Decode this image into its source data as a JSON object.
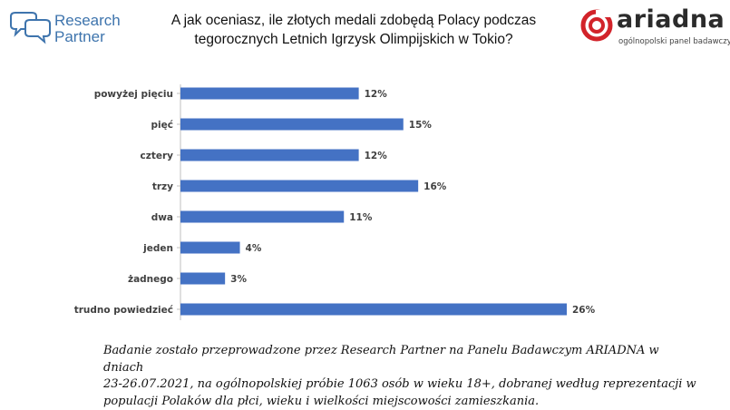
{
  "header": {
    "brand_left": [
      "Research",
      "Partner"
    ],
    "title_lines": [
      "A jak oceniasz, ile złotych medali zdobędą Polacy podczas",
      "tegorocznych Letnich Igrzysk Olimpijskich w Tokio?"
    ],
    "brand_right": "ariadna",
    "brand_right_sub": "ogólnopolski panel badawczy"
  },
  "colors": {
    "bar": "#4472c4",
    "rp_blue": "#3e74ad",
    "ariadna_red": "#d2232a"
  },
  "chart_data": {
    "type": "bar",
    "orientation": "horizontal",
    "title": "A jak oceniasz, ile złotych medali zdobędą Polacy podczas tegorocznych Letnich Igrzysk Olimpijskich w Tokio?",
    "categories": [
      "powyżej pięciu",
      "pięć",
      "cztery",
      "trzy",
      "dwa",
      "jeden",
      "żadnego",
      "trudno powiedzieć"
    ],
    "values": [
      12,
      15,
      12,
      16,
      11,
      4,
      3,
      26
    ],
    "value_labels": [
      "12%",
      "15%",
      "12%",
      "16%",
      "11%",
      "4%",
      "3%",
      "26%"
    ],
    "unit": "%",
    "xlim": [
      0,
      26
    ],
    "grid": false,
    "legend": "none"
  },
  "footer": {
    "lines": [
      "Badanie zostało przeprowadzone przez Research Partner na Panelu Badawczym ARIADNA w dniach",
      "23-26.07.2021, na ogólnopolskiej próbie 1063 osób w wieku 18+, dobranej według reprezentacji w",
      "populacji Polaków dla płci, wieku i wielkości miejscowości zamieszkania."
    ]
  }
}
